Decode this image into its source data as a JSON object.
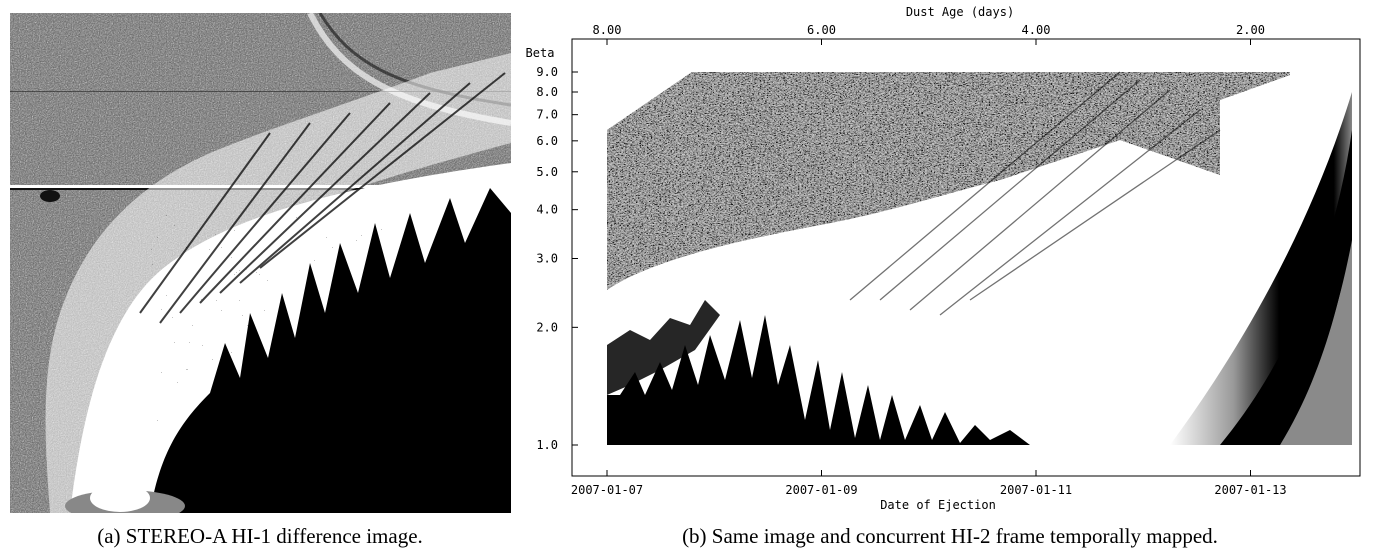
{
  "caption_a": "(a) STEREO-A HI-1 difference image.",
  "caption_b": "(b) Same image and concurrent HI-2 frame temporally mapped.",
  "colors": {
    "dark": "#000000",
    "light": "#ffffff",
    "gray": "#8a8a8a"
  },
  "chart_data": {
    "type": "heatmap",
    "title": "",
    "top_axis": {
      "label": "Dust Age (days)",
      "ticks": [
        "8.00",
        "6.00",
        "4.00",
        "2.00"
      ],
      "values": [
        8,
        6,
        4,
        2
      ]
    },
    "x_axis": {
      "label": "Date of Ejection",
      "ticks": [
        "2007-01-07",
        "2007-01-09",
        "2007-01-11",
        "2007-01-13"
      ]
    },
    "y_axis": {
      "label": "Beta",
      "scale": "log",
      "ticks": [
        "1.0",
        "2.0",
        "3.0",
        "4.0",
        "5.0",
        "6.0",
        "7.0",
        "8.0",
        "9.0"
      ],
      "values": [
        1,
        2,
        3,
        4,
        5,
        6,
        7,
        8,
        9
      ],
      "ylim": [
        0.88,
        10.3
      ]
    }
  }
}
